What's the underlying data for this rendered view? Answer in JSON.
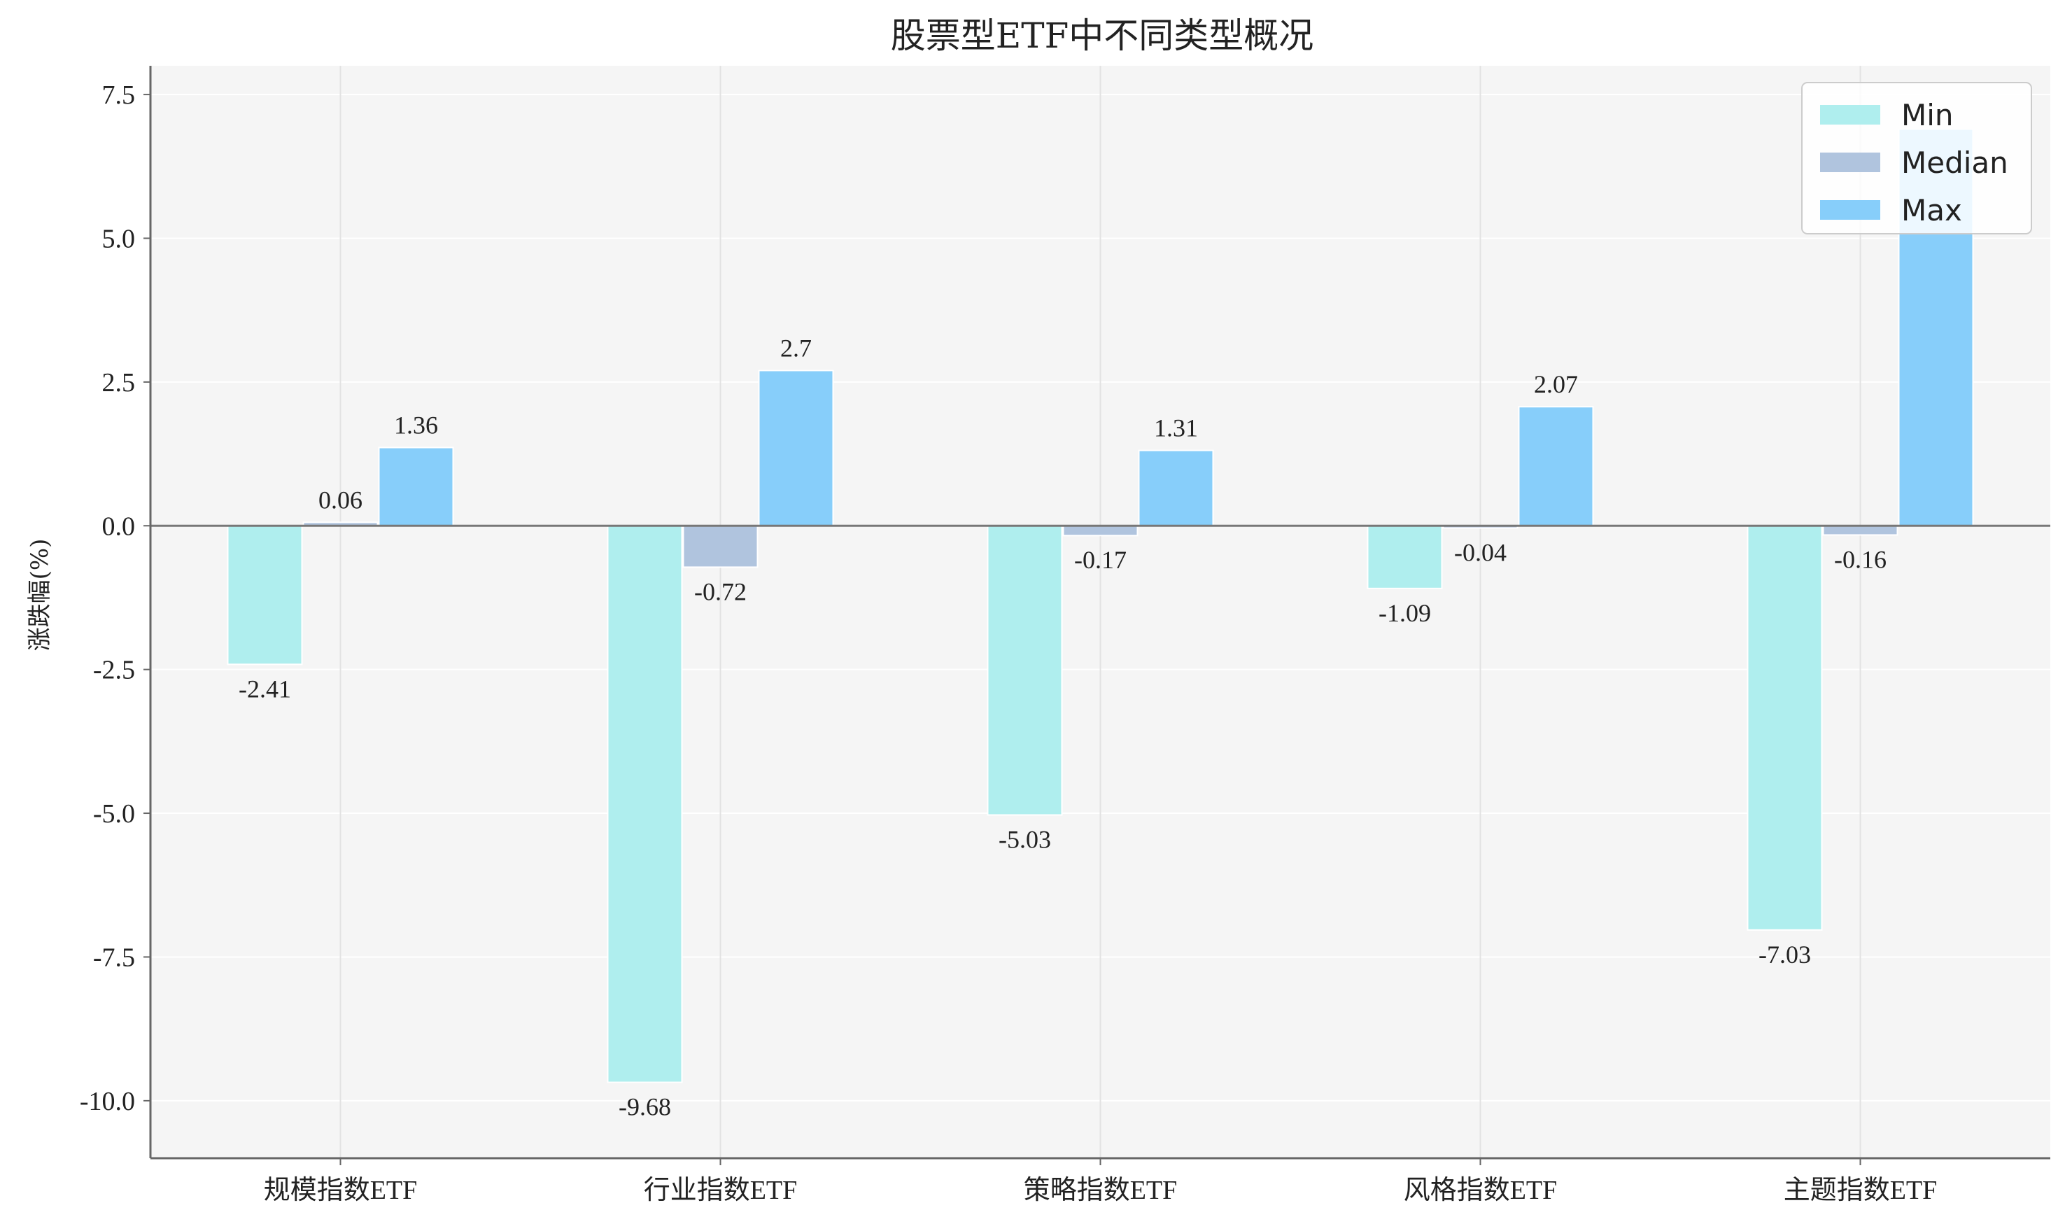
{
  "chart_data": {
    "type": "bar",
    "title": "股票型ETF中不同类型概况",
    "xlabel": "",
    "ylabel": "涨跌幅(%)",
    "categories": [
      "规模指数ETF",
      "行业指数ETF",
      "策略指数ETF",
      "风格指数ETF",
      "主题指数ETF"
    ],
    "series": [
      {
        "name": "Min",
        "color": "#afeeee",
        "values": [
          -2.41,
          -9.68,
          -5.03,
          -1.09,
          -7.03
        ]
      },
      {
        "name": "Median",
        "color": "#b0c4de",
        "values": [
          0.06,
          -0.72,
          -0.17,
          -0.04,
          -0.16
        ]
      },
      {
        "name": "Max",
        "color": "#87cefa",
        "values": [
          1.36,
          2.7,
          1.31,
          2.07,
          6.9
        ]
      }
    ],
    "data_labels": [
      [
        "-2.41",
        "0.06",
        "1.36"
      ],
      [
        "-9.68",
        "-0.72",
        "2.7"
      ],
      [
        "-5.03",
        "-0.17",
        "1.31"
      ],
      [
        "-1.09",
        "-0.04",
        "2.07"
      ],
      [
        "-7.03",
        "-0.16",
        ""
      ]
    ],
    "ylim": [
      -11.0,
      8.0
    ],
    "yticks": [
      -10.0,
      -7.5,
      -5.0,
      -2.5,
      0.0,
      2.5,
      5.0,
      7.5
    ],
    "ytick_labels": [
      "-10.0",
      "-7.5",
      "-5.0",
      "-2.5",
      "0.0",
      "2.5",
      "5.0",
      "7.5"
    ],
    "grid": true,
    "legend_position": "top-right",
    "background_color": "#f5f5f5"
  }
}
